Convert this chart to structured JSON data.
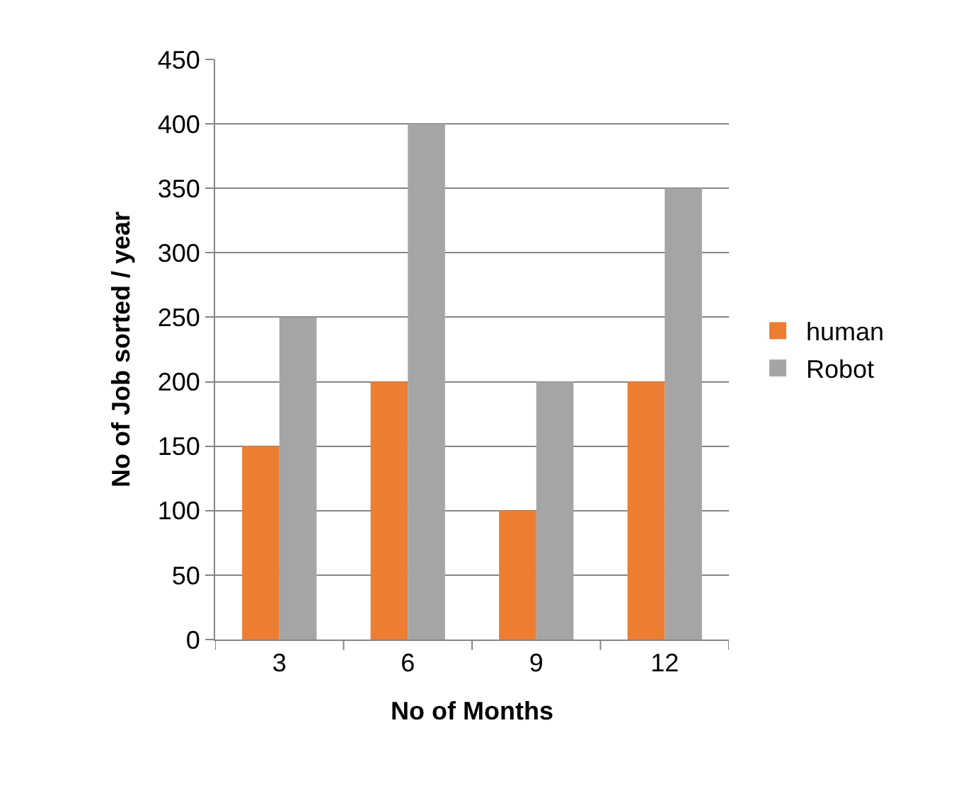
{
  "chart_data": {
    "type": "bar",
    "xlabel": "No of Months",
    "ylabel": "No of Job sorted / year",
    "categories": [
      "3",
      "6",
      "9",
      "12"
    ],
    "series": [
      {
        "name": "human",
        "color": "#ed7d31",
        "values": [
          150,
          200,
          100,
          200
        ]
      },
      {
        "name": "Robot",
        "color": "#a5a5a5",
        "values": [
          250,
          400,
          200,
          350
        ]
      }
    ],
    "ylim": [
      0,
      450
    ],
    "yticks": [
      0,
      50,
      100,
      150,
      200,
      250,
      300,
      350,
      400,
      450
    ],
    "grid": "y",
    "legend": "right"
  }
}
